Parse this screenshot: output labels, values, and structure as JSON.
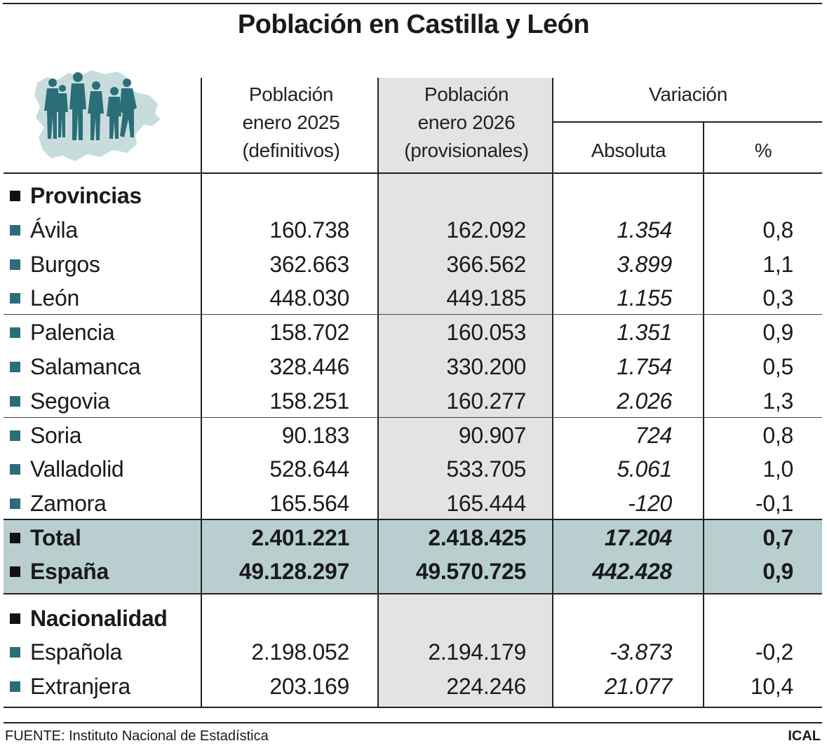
{
  "title": "Población en Castilla y León",
  "header": {
    "col1": [
      "Población",
      "enero 2025",
      "(definitivos)"
    ],
    "col2": [
      "Población",
      "enero 2026",
      "(provisionales)"
    ],
    "variation": "Variación",
    "absolute": "Absoluta",
    "percent": "%"
  },
  "sections": {
    "provincias": "Provincias",
    "nacionalidad": "Nacionalidad"
  },
  "provinces": [
    {
      "name": "Ávila",
      "y2025": "160.738",
      "y2026": "162.092",
      "abs": "1.354",
      "pct": "0,8"
    },
    {
      "name": "Burgos",
      "y2025": "362.663",
      "y2026": "366.562",
      "abs": "3.899",
      "pct": "1,1"
    },
    {
      "name": "León",
      "y2025": "448.030",
      "y2026": "449.185",
      "abs": "1.155",
      "pct": "0,3"
    },
    {
      "name": "Palencia",
      "y2025": "158.702",
      "y2026": "160.053",
      "abs": "1.351",
      "pct": "0,9"
    },
    {
      "name": "Salamanca",
      "y2025": "328.446",
      "y2026": "330.200",
      "abs": "1.754",
      "pct": "0,5"
    },
    {
      "name": "Segovia",
      "y2025": "158.251",
      "y2026": "160.277",
      "abs": "2.026",
      "pct": "1,3"
    },
    {
      "name": "Soria",
      "y2025": "90.183",
      "y2026": "90.907",
      "abs": "724",
      "pct": "0,8"
    },
    {
      "name": "Valladolid",
      "y2025": "528.644",
      "y2026": "533.705",
      "abs": "5.061",
      "pct": "1,0"
    },
    {
      "name": "Zamora",
      "y2025": "165.564",
      "y2026": "165.444",
      "abs": "-120",
      "pct": "-0,1"
    }
  ],
  "totals": [
    {
      "name": "Total",
      "y2025": "2.401.221",
      "y2026": "2.418.425",
      "abs": "17.204",
      "pct": "0,7"
    },
    {
      "name": "España",
      "y2025": "49.128.297",
      "y2026": "49.570.725",
      "abs": "442.428",
      "pct": "0,9"
    }
  ],
  "nationality": [
    {
      "name": "Española",
      "y2025": "2.198.052",
      "y2026": "2.194.179",
      "abs": "-3.873",
      "pct": "-0,2"
    },
    {
      "name": "Extranjera",
      "y2025": "203.169",
      "y2026": "224.246",
      "abs": "21.077",
      "pct": "10,4"
    }
  ],
  "footer": {
    "source": "FUENTE: Instituto Nacional de Estadística",
    "credit": "ICAL"
  },
  "colors": {
    "accent_teal": "#2a6e78",
    "highlight_row": "#b9cfcf",
    "gray_column": "#e3e3e3"
  },
  "icons": [
    "castilla-leon-map-illustration",
    "people-silhouettes-illustration"
  ]
}
